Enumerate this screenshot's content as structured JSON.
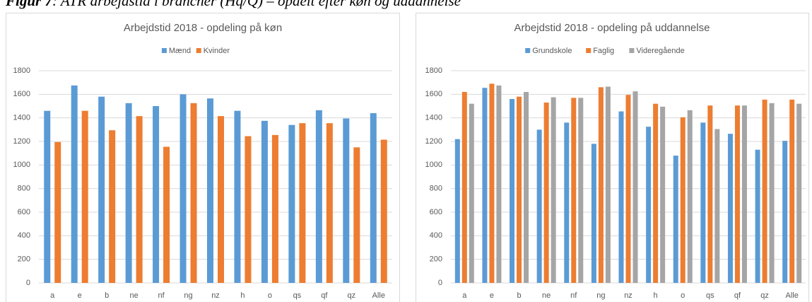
{
  "caption_label": "Figur 7",
  "caption": ": ATR arbejdstid i brancher (Hq/Q) – opdelt efter køn og uddannelse",
  "chart_data": [
    {
      "type": "bar",
      "title": "Arbejdstid 2018 - opdeling på køn",
      "categories": [
        "a",
        "e",
        "b",
        "ne",
        "nf",
        "ng",
        "nz",
        "h",
        "o",
        "qs",
        "qf",
        "qz",
        "Alle"
      ],
      "series": [
        {
          "name": "Mænd",
          "color": "#5b9bd5",
          "values": [
            1460,
            1675,
            1580,
            1525,
            1500,
            1600,
            1565,
            1460,
            1375,
            1340,
            1465,
            1395,
            1440
          ]
        },
        {
          "name": "Kvinder",
          "color": "#ed7d31",
          "values": [
            1195,
            1460,
            1295,
            1415,
            1155,
            1525,
            1415,
            1245,
            1255,
            1355,
            1355,
            1150,
            1215
          ]
        }
      ],
      "ylim": [
        0,
        1800
      ],
      "yticks": [
        0,
        200,
        400,
        600,
        800,
        1000,
        1200,
        1400,
        1600,
        1800
      ],
      "grid": true,
      "legend": "top"
    },
    {
      "type": "bar",
      "title": "Arbejdstid 2018 - opdeling på uddannelse",
      "categories": [
        "a",
        "e",
        "b",
        "ne",
        "nf",
        "ng",
        "nz",
        "h",
        "o",
        "qs",
        "qf",
        "qz",
        "Alle"
      ],
      "series": [
        {
          "name": "Grundskole",
          "color": "#5b9bd5",
          "values": [
            1220,
            1655,
            1560,
            1300,
            1360,
            1180,
            1455,
            1325,
            1080,
            1360,
            1265,
            1130,
            1205
          ]
        },
        {
          "name": "Faglig",
          "color": "#ed7d31",
          "values": [
            1620,
            1690,
            1580,
            1530,
            1570,
            1660,
            1595,
            1520,
            1405,
            1505,
            1505,
            1555,
            1555
          ]
        },
        {
          "name": "Videregående",
          "color": "#a5a5a5",
          "values": [
            1520,
            1675,
            1620,
            1575,
            1570,
            1665,
            1625,
            1495,
            1465,
            1305,
            1505,
            1525,
            1520
          ]
        }
      ],
      "ylim": [
        0,
        1800
      ],
      "yticks": [
        0,
        200,
        400,
        600,
        800,
        1000,
        1200,
        1400,
        1600,
        1800
      ],
      "grid": true,
      "legend": "top"
    }
  ]
}
